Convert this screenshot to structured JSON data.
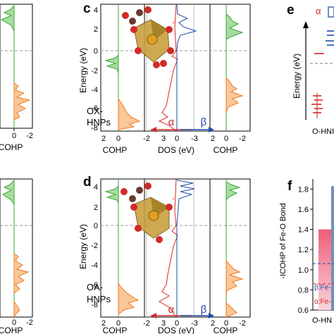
{
  "panels": {
    "c": {
      "letter": "c",
      "label_lines": [
        "OX-",
        "HNPs"
      ],
      "ylabel": "Energy (eV)",
      "yticks": [
        "4",
        "2",
        "0",
        "-2",
        "-4",
        "-6",
        "-8"
      ],
      "cohp_left_xticks": [
        "2",
        "0"
      ],
      "cohp_left_xlabel": "COHP",
      "dos_xticks": [
        "-2",
        "3",
        "0",
        "-3"
      ],
      "dos_xlabel": "DOS (eV)",
      "cohp_right_xticks": [
        "2",
        "0",
        "-2"
      ],
      "cohp_right_xlabel": "COHP",
      "alpha": "α",
      "beta": "β"
    },
    "d": {
      "letter": "d",
      "label_lines": [
        "OA-",
        "HNPs"
      ],
      "ylabel": "Energy (eV)",
      "yticks": [
        "4",
        "2",
        "0",
        "-2",
        "-4",
        "-6",
        "-8"
      ],
      "cohp_left_xticks": [
        "2",
        "0"
      ],
      "cohp_left_xlabel": "COHP",
      "dos_xticks": [
        "-2",
        "3",
        "0",
        "-3"
      ],
      "dos_xlabel": "DOS (eV)",
      "cohp_right_xticks": [
        "2",
        "0",
        "-2"
      ],
      "cohp_right_xlabel": "COHP",
      "alpha": "α",
      "beta": "β"
    },
    "left_fragment": {
      "top_ticks": [
        "0",
        "-2"
      ],
      "top_xlabel": "COHP",
      "bottom_ticks": [
        "0",
        "-2"
      ],
      "bottom_xlabel": "COHP"
    },
    "e": {
      "letter": "e",
      "alpha": "α",
      "ylabel": "Energy (eV)",
      "xlabel_fragment": "O-HNI"
    },
    "f": {
      "letter": "f",
      "ylabel": "-ICOHP of Fe-O Bond",
      "yticks": [
        "1.8",
        "1.6",
        "1.4",
        "1.2",
        "1.0",
        "0.8",
        "0.6"
      ],
      "legend_beta": "β:Fe-",
      "legend_alpha": "α:Fe-",
      "xlabel_fragment": "O-HN"
    }
  },
  "chart_data": [
    {
      "type": "bar",
      "title": "",
      "ylabel": "-ICOHP of Fe-O Bond",
      "ylim": [
        0.6,
        1.9
      ],
      "categories": [
        "O-HN"
      ],
      "series": [
        {
          "name": "α:Fe-",
          "values": [
            1.4
          ]
        },
        {
          "name": "β:Fe-",
          "values": [
            1.83
          ]
        }
      ],
      "reference_lines": {
        "beta": 1.06,
        "alpha": 0.86
      }
    }
  ],
  "colors": {
    "green": "#3aa635",
    "green_fill": "#a8dca0",
    "orange": "#f07a1d",
    "orange_fill": "#f9c79a",
    "red": "#d62728",
    "blue": "#1f4aa8",
    "steelblue": "#6f8fc4",
    "pink": "#f39aa9",
    "panel_letter": "#000000"
  }
}
